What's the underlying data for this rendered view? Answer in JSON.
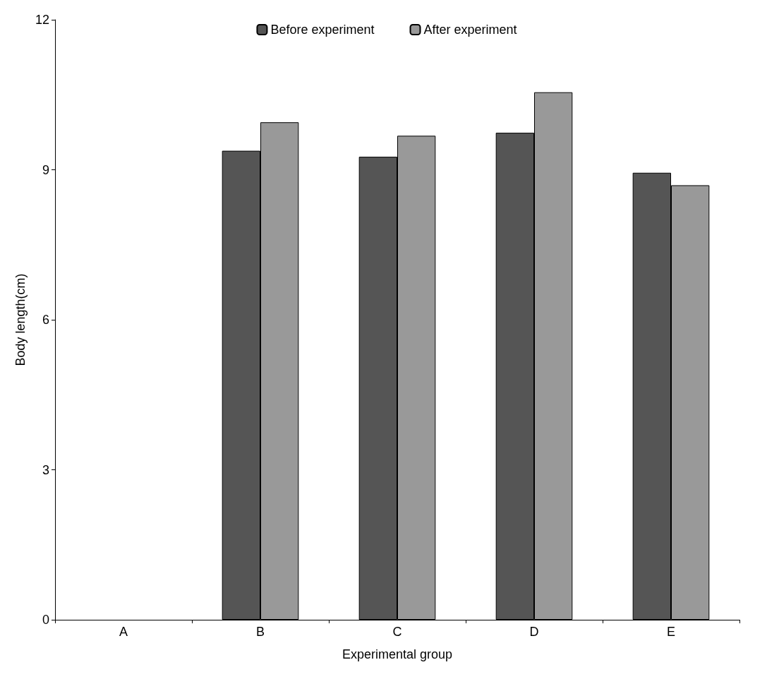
{
  "chart_data": {
    "type": "bar",
    "xlabel": "Experimental group",
    "ylabel": "Body length(cm)",
    "categories": [
      "A",
      "B",
      "C",
      "D",
      "E"
    ],
    "series": [
      {
        "name": "Before experiment",
        "color": "#555555",
        "values": [
          null,
          9.38,
          9.26,
          9.74,
          8.94
        ]
      },
      {
        "name": "After experiment",
        "color": "#999999",
        "values": [
          null,
          9.95,
          9.68,
          10.55,
          8.69
        ]
      }
    ],
    "ylim": [
      0,
      12
    ],
    "yticks": [
      0,
      3,
      6,
      9,
      12
    ],
    "grid": false,
    "legend": "top"
  }
}
